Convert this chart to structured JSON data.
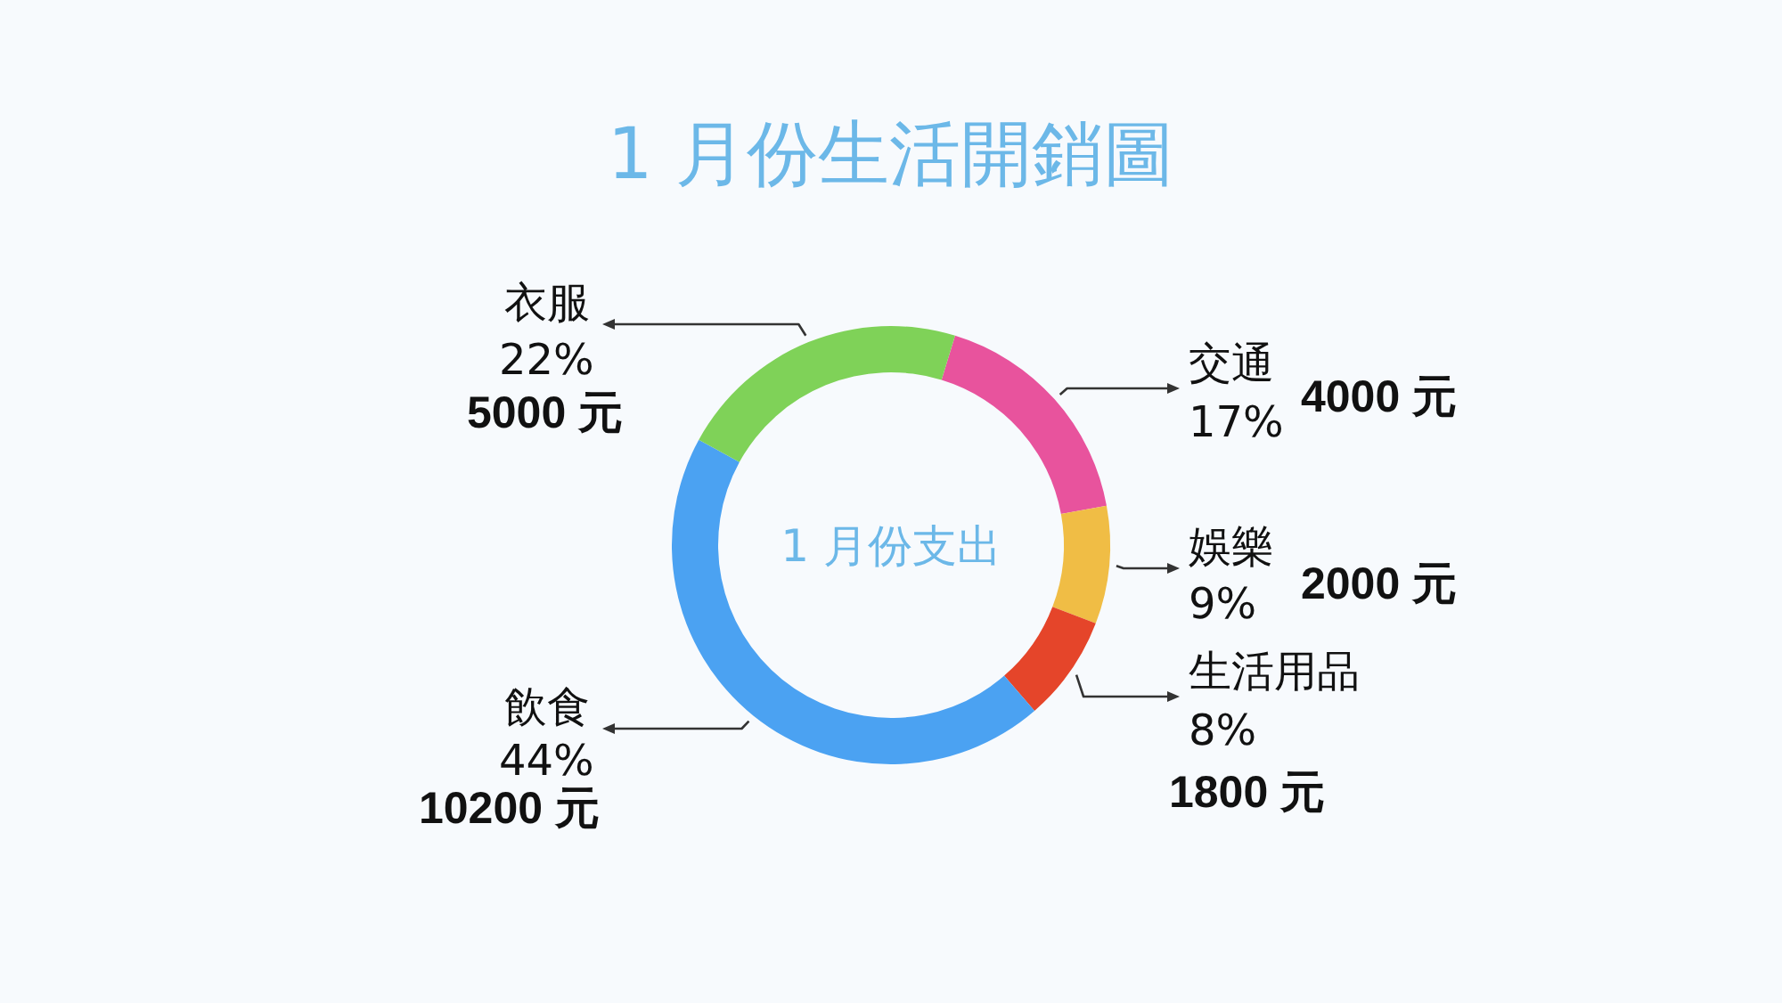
{
  "chart_data": {
    "type": "donut",
    "title": "1 月份生活開銷圖",
    "categories": [
      "交通",
      "娛樂",
      "生活用品",
      "飲食",
      "衣服"
    ],
    "values": [
      4000,
      2000,
      1800,
      10200,
      5000
    ],
    "colors": [
      "#e8539d",
      "#f0bd45",
      "#e5452a",
      "#4ba2f2",
      "#7fd258"
    ],
    "value_labels": [
      "4000 元",
      "2000 元",
      "1800 元",
      "10200 元",
      "5000 元"
    ],
    "annotations": [
      "1 月份支出",
      "17%",
      "9%",
      "8%",
      "44%",
      "22%"
    ]
  }
}
